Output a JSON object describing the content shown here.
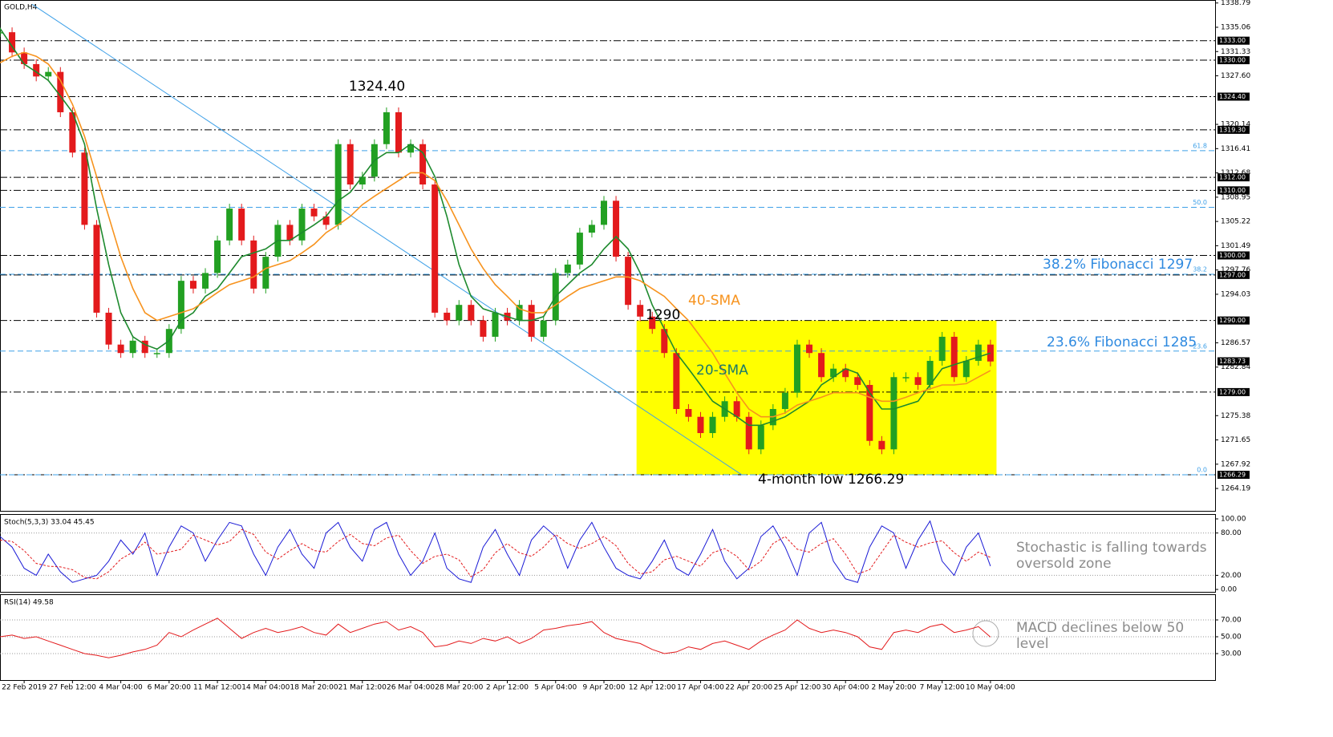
{
  "chart_data": [
    {
      "type": "candlestick",
      "title": "GOLD,H4",
      "categories": [
        null,
        null,
        "22 Feb 2019",
        null,
        null,
        null,
        "27 Feb 12:00",
        null,
        null,
        null,
        "4 Mar 04:00",
        null,
        null,
        null,
        "6 Mar 20:00",
        null,
        null,
        null,
        "11 Mar 12:00",
        null,
        null,
        null,
        "14 Mar 04:00",
        null,
        null,
        null,
        "18 Mar 20:00",
        null,
        null,
        null,
        "21 Mar 12:00",
        null,
        null,
        null,
        "26 Mar 04:00",
        null,
        null,
        null,
        "28 Mar 20:00",
        null,
        null,
        null,
        "2 Apr 12:00",
        null,
        null,
        null,
        "5 Apr 04:00",
        null,
        null,
        null,
        "9 Apr 20:00",
        null,
        null,
        null,
        "12 Apr 12:00",
        null,
        null,
        null,
        "17 Apr 04:00",
        null,
        null,
        null,
        "22 Apr 20:00",
        null,
        null,
        null,
        "25 Apr 12:00",
        null,
        null,
        null,
        "30 Apr 04:00",
        null,
        null,
        null,
        "2 May 20:00",
        null,
        null,
        null,
        "7 May 12:00",
        null,
        null,
        null,
        "10 May 04:00",
        null
      ],
      "values": [
        1334.3,
        1331.2,
        1329.4,
        1327.5,
        1328.2,
        1322,
        1315.8,
        1304.7,
        1291.2,
        1286.3,
        1285,
        1286.9,
        1285,
        1285,
        1288.7,
        1296.1,
        1294.9,
        1297.3,
        1302.3,
        1307.2,
        1302.3,
        1294.9,
        1299.8,
        1304.7,
        1302.3,
        1307.2,
        1306,
        1304.7,
        1317.1,
        1310.9,
        1312.1,
        1317.1,
        1322,
        1315.8,
        1317.1,
        1310.9,
        1291.2,
        1290,
        1292.4,
        1290,
        1287.5,
        1291.2,
        1290,
        1292.4,
        1287.5,
        1290,
        1297.3,
        1298.6,
        1303.5,
        1304.7,
        1308.4,
        1299.8,
        1292.4,
        1290.6,
        1288.7,
        1285,
        1276.4,
        1275.2,
        1272.7,
        1275.2,
        1277.6,
        1275.2,
        1270.2,
        1273.9,
        1276.4,
        1278.9,
        1286.3,
        1285,
        1281.3,
        1282.6,
        1281.3,
        1280.1,
        1271.5,
        1270.2,
        1281.3,
        1281.3,
        1280.1,
        1283.8,
        1287.5,
        1281.3,
        1283.8,
        1286.3,
        1283.7,
        null
      ],
      "up_color": "#22a022",
      "down_color": "#e31a1c",
      "series": [
        {
          "name": "20-SMA",
          "color": "#1e8a2e",
          "values": [
            1334.9,
            1332.1,
            1329.4,
            1328.2,
            1326.9,
            1324.5,
            1322,
            1317.1,
            1307.2,
            1298.6,
            1291.2,
            1287.5,
            1286.3,
            1285.6,
            1286.9,
            1290,
            1291.2,
            1293.7,
            1294.9,
            1297.3,
            1299.8,
            1300.4,
            1301,
            1302.3,
            1302.3,
            1303.5,
            1304.7,
            1306,
            1308.4,
            1309.7,
            1312.1,
            1314.6,
            1315.8,
            1315.8,
            1317.1,
            1315.8,
            1312.1,
            1306,
            1298.6,
            1293.7,
            1291.8,
            1291.2,
            1290.6,
            1290,
            1290,
            1290.6,
            1293.7,
            1295.5,
            1297.3,
            1298.6,
            1301,
            1302.9,
            1301,
            1297.3,
            1292.4,
            1288.7,
            1285,
            1282.6,
            1280.1,
            1277.6,
            1276.4,
            1275.2,
            1273.9,
            1273.9,
            1274.5,
            1275.2,
            1276.4,
            1277.6,
            1280.1,
            1281.3,
            1282.6,
            1281.9,
            1278.9,
            1276.4,
            1276.4,
            1277,
            1277.6,
            1280.1,
            1282.6,
            1283.2,
            1283.8,
            1284.4,
            1285,
            null
          ]
        },
        {
          "name": "40-SMA",
          "color": "#f7931e",
          "values": [
            1329.6,
            1330.6,
            1331.2,
            1330.6,
            1329.4,
            1326.9,
            1323.2,
            1318.3,
            1312.1,
            1306,
            1299.8,
            1294.9,
            1291.2,
            1290,
            1290.6,
            1291.2,
            1291.8,
            1293,
            1294.3,
            1295.5,
            1296.1,
            1296.7,
            1298,
            1298.6,
            1299.2,
            1300.4,
            1301.7,
            1303.5,
            1304.7,
            1306,
            1307.8,
            1309.1,
            1310.3,
            1311.5,
            1312.7,
            1312.7,
            1311.5,
            1308.4,
            1304.7,
            1301,
            1298,
            1295.5,
            1293.7,
            1291.8,
            1291.2,
            1291.2,
            1292.4,
            1293.7,
            1294.9,
            1295.5,
            1296.1,
            1296.7,
            1296.7,
            1296.1,
            1294.9,
            1293.7,
            1291.8,
            1290,
            1287.5,
            1285,
            1281.9,
            1278.9,
            1276.4,
            1275.2,
            1275.2,
            1275.8,
            1277,
            1277.6,
            1278.2,
            1278.9,
            1278.9,
            1278.9,
            1278.2,
            1277.6,
            1277.6,
            1278.2,
            1278.9,
            1279.5,
            1280.1,
            1280.1,
            1280.3,
            1281.3,
            1282.3,
            null
          ]
        }
      ],
      "ylim": [
        1260.75,
        1339.25
      ],
      "yticks": [
        1338.79,
        {
          "value": 1335.06,
          "label": "1335.06"
        },
        1331.33,
        {
          "value": 1327.6,
          "label": "1327.60"
        },
        1320.14,
        1316.41,
        1312.68,
        1308.95,
        1305.22,
        1301.49,
        1297.76,
        1294.03,
        1286.57,
        1282.84,
        1275.38,
        1271.65,
        1267.92,
        1264.19
      ],
      "levels": [
        {
          "value": 1333,
          "label": "1333.00"
        },
        {
          "value": 1330,
          "label": "1330.00"
        },
        {
          "value": 1324.4,
          "label": "1324.40"
        },
        {
          "value": 1319.3,
          "label": "1319.30"
        },
        {
          "value": 1312,
          "label": "1312.00"
        },
        {
          "value": 1310,
          "label": "1310.00"
        },
        {
          "value": 1300,
          "label": "1300.00"
        },
        {
          "value": 1297,
          "label": "1297.00"
        },
        {
          "value": 1290,
          "label": "1290.00"
        },
        {
          "value": 1279,
          "label": "1279.00"
        },
        {
          "value": 1266.29,
          "label": "1266.29"
        }
      ],
      "level_color": "#000000",
      "fib_levels": [
        {
          "name": "61.8",
          "value": 1316.1
        },
        {
          "name": "50.0",
          "value": 1307.4
        },
        {
          "name": "38.2",
          "value": 1297.1
        },
        {
          "name": "23.6",
          "value": 1285.3
        },
        {
          "name": "0.0",
          "value": 1266.29
        }
      ],
      "fib_color": "#3ea0e8",
      "last_price": 1283.73,
      "trendline": {
        "x": [
          2.66,
          61.4
        ],
        "values": [
          1338.6,
          1266.3
        ],
        "color": "#3ea0e8"
      },
      "highlight": {
        "x": [
          52.7,
          82.5
        ],
        "y": [
          1290,
          1266.29
        ],
        "color": "#ffff00"
      },
      "annotations": [
        {
          "text": "1324.40",
          "color": "#000000"
        },
        {
          "text": "1290",
          "color": "#000000"
        },
        {
          "text": "40-SMA",
          "color": "#f7931e"
        },
        {
          "text": "20-SMA",
          "color": "#1a7a6a"
        },
        {
          "text": "38.2% Fibonacci 1297",
          "color": "#2f8ae0"
        },
        {
          "text": "23.6% Fibonacci 1285",
          "color": "#2f8ae0"
        },
        {
          "text": "4-month low 1266.29",
          "color": "#000000"
        }
      ]
    },
    {
      "type": "line",
      "title": "Stoch(5,3,3) 33.04 45.45",
      "series": [
        {
          "color": "#1a1ad6",
          "style": "solid",
          "values": [
            75,
            60,
            30,
            20,
            50,
            25,
            10,
            15,
            20,
            40,
            70,
            50,
            80,
            20,
            60,
            90,
            80,
            40,
            70,
            95,
            90,
            50,
            20,
            60,
            85,
            50,
            30,
            80,
            95,
            60,
            40,
            85,
            95,
            50,
            20,
            40,
            80,
            30,
            15,
            10,
            60,
            85,
            50,
            20,
            70,
            90,
            75,
            30,
            70,
            95,
            60,
            30,
            20,
            15,
            40,
            70,
            30,
            20,
            50,
            85,
            40,
            15,
            30,
            75,
            90,
            60,
            20,
            80,
            95,
            40,
            15,
            10,
            60,
            90,
            80,
            30,
            70,
            97,
            40,
            20,
            60,
            80,
            33.04,
            null
          ]
        },
        {
          "color": "#e31a1c",
          "style": "dashed",
          "values": [
            70,
            68,
            55,
            37,
            33,
            32,
            28,
            17,
            15,
            25,
            43,
            53,
            67,
            50,
            53,
            57,
            77,
            70,
            63,
            68,
            85,
            78,
            53,
            43,
            55,
            65,
            55,
            53,
            68,
            78,
            65,
            62,
            73,
            77,
            55,
            37,
            47,
            50,
            42,
            18,
            28,
            52,
            65,
            52,
            47,
            60,
            78,
            65,
            58,
            65,
            75,
            62,
            37,
            22,
            25,
            42,
            47,
            40,
            33,
            52,
            58,
            47,
            28,
            40,
            65,
            75,
            57,
            53,
            65,
            72,
            50,
            22,
            28,
            53,
            77,
            67,
            60,
            66,
            69,
            52,
            40,
            53,
            45.45,
            null
          ]
        }
      ],
      "ylim": [
        -3.4,
        105.7
      ],
      "yticks": [
        {
          "value": 100,
          "label": "100.00"
        },
        {
          "value": 80,
          "label": "80.00"
        },
        {
          "value": 20,
          "label": "20.00"
        },
        {
          "value": 0,
          "label": "0.00"
        }
      ],
      "grid_values": [
        80,
        20
      ],
      "annotation": [
        "Stochastic is falling towards",
        "oversold zone"
      ],
      "annotation_color": "#8c8c8c"
    },
    {
      "type": "line",
      "title": "RSI(14) 49.58",
      "series": [
        {
          "color": "#e31a1c",
          "style": "solid",
          "values": [
            50,
            52,
            48,
            50,
            45,
            40,
            35,
            30,
            28,
            25,
            28,
            32,
            35,
            40,
            55,
            50,
            58,
            65,
            72,
            60,
            48,
            55,
            60,
            55,
            58,
            62,
            55,
            52,
            65,
            55,
            60,
            65,
            68,
            58,
            62,
            55,
            38,
            40,
            45,
            42,
            48,
            45,
            50,
            42,
            48,
            58,
            60,
            63,
            65,
            68,
            55,
            48,
            45,
            42,
            35,
            30,
            32,
            38,
            35,
            42,
            45,
            40,
            35,
            45,
            52,
            58,
            70,
            60,
            55,
            58,
            55,
            50,
            38,
            35,
            55,
            58,
            55,
            62,
            65,
            55,
            58,
            62,
            49.58,
            null
          ]
        }
      ],
      "ylim": [
        -1.4,
        99.5
      ],
      "yticks": [
        {
          "value": 70,
          "label": "70.00"
        },
        {
          "value": 50,
          "label": "50.00"
        },
        {
          "value": 30,
          "label": "30.00"
        }
      ],
      "grid_values": [
        70,
        50,
        30
      ],
      "annotation": [
        "MACD declines below 50",
        "level"
      ],
      "annotation_color": "#8c8c8c"
    }
  ]
}
